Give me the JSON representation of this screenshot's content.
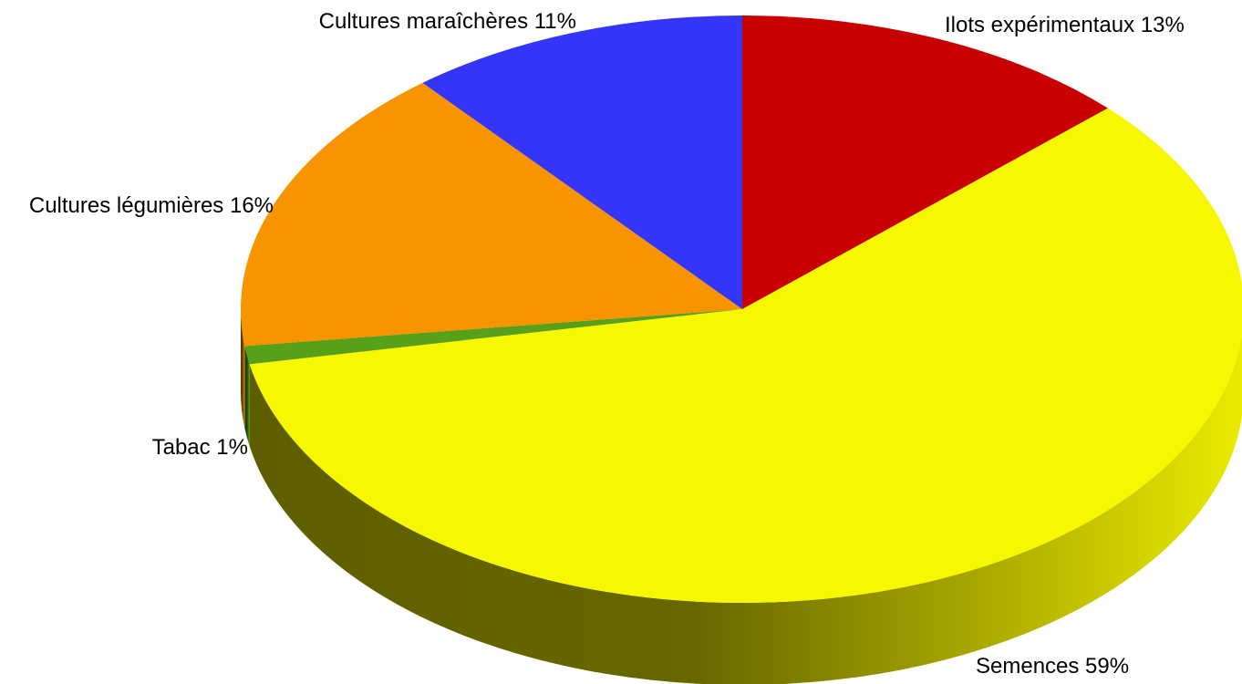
{
  "chart_data": {
    "type": "pie",
    "title": "",
    "style": "3d",
    "legend": "none",
    "labels_on_chart": true,
    "slices": [
      {
        "label": "Ilots expérimentaux",
        "value": 13,
        "value_label": "13%",
        "color": "#c80000"
      },
      {
        "label": "Semences",
        "value": 59,
        "value_label": "59%",
        "color": "#f7f700"
      },
      {
        "label": "Tabac",
        "value": 1,
        "value_label": "1%",
        "color": "#59a01a"
      },
      {
        "label": "Cultures légumières",
        "value": 16,
        "value_label": "16%",
        "color": "#f79400"
      },
      {
        "label": "Cultures maraîchères",
        "value": 11,
        "value_label": "11%",
        "color": "#3535fa"
      }
    ]
  }
}
